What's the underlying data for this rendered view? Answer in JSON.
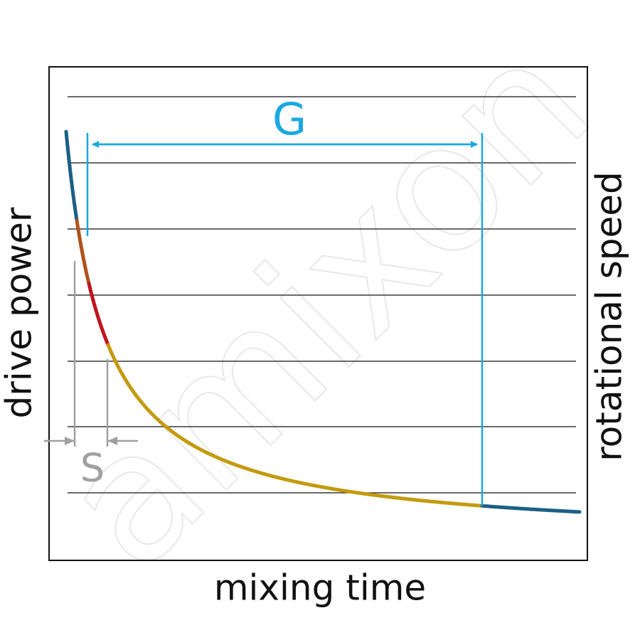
{
  "watermark": "amixon",
  "labels": {
    "y_left": "drive power",
    "y_right": "rotational speed",
    "x": "mixing time",
    "g": "G",
    "s": "S"
  }
}
